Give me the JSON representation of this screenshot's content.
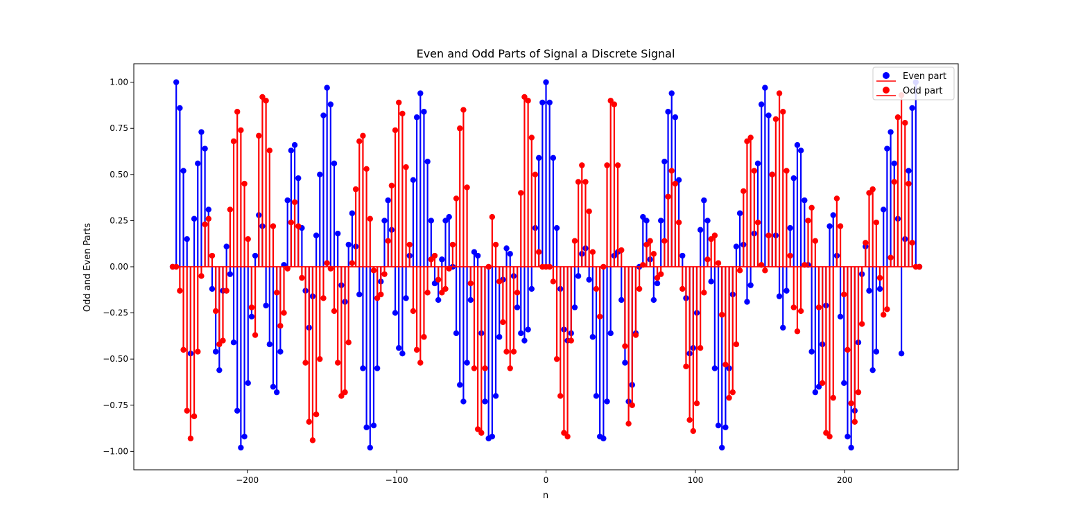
{
  "chart_data": {
    "type": "stem",
    "title": "Even and Odd Parts of Signal a Discrete Signal",
    "xlabel": "n",
    "ylabel": "Odd and Even Parts",
    "xlim": [
      -276,
      276
    ],
    "ylim": [
      -1.1,
      1.1
    ],
    "x_ticks": [
      -200,
      -100,
      0,
      100,
      200
    ],
    "x_tick_labels": [
      "−200",
      "−100",
      "0",
      "100",
      "200"
    ],
    "y_ticks": [
      -1.0,
      -0.75,
      -0.5,
      -0.25,
      0.0,
      0.25,
      0.5,
      0.75,
      1.0
    ],
    "y_tick_labels": [
      "−1.00",
      "−0.75",
      "−0.50",
      "−0.25",
      "0.00",
      "0.25",
      "0.50",
      "0.75",
      "1.00"
    ],
    "x_range": [
      -250,
      250
    ],
    "legend": {
      "position": "top-right",
      "entries": [
        {
          "label": "Even part",
          "color": "#0000ff"
        },
        {
          "label": "Odd part",
          "color": "#ff0000"
        }
      ]
    },
    "series": [
      {
        "name": "Even part",
        "color": "#0000ff",
        "values": [
          0.0,
          1.0,
          0.86,
          0.52,
          0.15,
          -0.47,
          0.26,
          0.56,
          0.73,
          0.64,
          0.31,
          -0.12,
          -0.46,
          -0.56,
          -0.13,
          0.11,
          -0.04,
          -0.41,
          -0.78,
          -0.98,
          -0.92,
          -0.63,
          -0.27,
          0.06,
          0.28,
          0.22,
          -0.21,
          -0.42,
          -0.65,
          -0.68,
          -0.46,
          0.01,
          0.36,
          0.63,
          0.66,
          0.48,
          0.21,
          -0.13,
          -0.33,
          -0.16,
          0.17,
          0.5,
          0.82,
          0.97,
          0.88,
          0.56,
          0.18,
          -0.1,
          -0.19,
          0.12,
          0.29,
          0.11,
          -0.15,
          -0.55,
          -0.87,
          -0.98,
          -0.86,
          -0.55,
          -0.08,
          0.25,
          0.36,
          0.2,
          -0.25,
          -0.44,
          -0.47,
          -0.17,
          0.06,
          0.47,
          0.81,
          0.94,
          0.84,
          0.57,
          0.25,
          -0.09,
          -0.18,
          0.04,
          0.25,
          0.27,
          0.0,
          -0.36,
          -0.64,
          -0.73,
          -0.52,
          -0.18,
          0.08,
          0.06,
          -0.36,
          -0.73,
          -0.93,
          -0.92,
          -0.7,
          -0.38,
          -0.07,
          0.1,
          0.07,
          -0.05,
          -0.22,
          -0.36,
          -0.4,
          -0.34,
          -0.12,
          0.21,
          0.59,
          0.89,
          1.0,
          0.89,
          0.59,
          0.21,
          -0.12,
          -0.34,
          -0.4,
          -0.36,
          -0.22,
          -0.05,
          0.07,
          0.1,
          -0.07,
          -0.38,
          -0.7,
          -0.92,
          -0.93,
          -0.73,
          -0.36,
          0.06,
          0.08,
          -0.18,
          -0.52,
          -0.73,
          -0.64,
          -0.36,
          0.0,
          0.27,
          0.25,
          0.04,
          -0.18,
          -0.09,
          0.25,
          0.57,
          0.84,
          0.94,
          0.81,
          0.47,
          0.06,
          -0.17,
          -0.47,
          -0.44,
          -0.25,
          0.2,
          0.36,
          0.25,
          -0.08,
          -0.55,
          -0.86,
          -0.98,
          -0.87,
          -0.55,
          -0.15,
          0.11,
          0.29,
          0.12,
          -0.19,
          -0.1,
          0.18,
          0.56,
          0.88,
          0.97,
          0.82,
          0.5,
          0.17,
          -0.16,
          -0.33,
          -0.13,
          0.21,
          0.48,
          0.66,
          0.63,
          0.36,
          0.01,
          -0.46,
          -0.68,
          -0.65,
          -0.42,
          -0.21,
          0.22,
          0.28,
          0.06,
          -0.27,
          -0.63,
          -0.92,
          -0.98,
          -0.78,
          -0.41,
          -0.04,
          0.11,
          -0.13,
          -0.56,
          -0.46,
          -0.12,
          0.31,
          0.64,
          0.73,
          0.56,
          0.26,
          -0.47,
          0.15,
          0.52,
          0.86,
          1.0,
          0.0
        ]
      },
      {
        "name": "Odd part",
        "color": "#ff0000",
        "values": [
          0.0,
          0.0,
          -0.13,
          -0.45,
          -0.78,
          -0.93,
          -0.81,
          -0.46,
          -0.05,
          0.23,
          0.26,
          0.06,
          -0.24,
          -0.42,
          -0.4,
          -0.13,
          0.31,
          0.68,
          0.84,
          0.74,
          0.45,
          0.15,
          -0.22,
          -0.37,
          0.71,
          0.92,
          0.9,
          0.63,
          0.22,
          -0.14,
          -0.32,
          -0.25,
          -0.01,
          0.24,
          0.35,
          0.22,
          -0.06,
          -0.52,
          -0.84,
          -0.94,
          -0.8,
          -0.5,
          -0.17,
          0.02,
          -0.01,
          -0.24,
          -0.52,
          -0.7,
          -0.68,
          -0.41,
          0.02,
          0.42,
          0.68,
          0.71,
          0.53,
          0.26,
          -0.02,
          -0.17,
          -0.15,
          -0.04,
          0.14,
          0.44,
          0.74,
          0.89,
          0.83,
          0.54,
          0.12,
          -0.24,
          -0.45,
          -0.52,
          -0.38,
          -0.14,
          0.04,
          0.06,
          -0.07,
          -0.14,
          -0.12,
          -0.01,
          0.12,
          0.37,
          0.75,
          0.85,
          0.43,
          -0.09,
          -0.55,
          -0.88,
          -0.9,
          -0.55,
          0.0,
          0.27,
          0.12,
          -0.08,
          -0.3,
          -0.46,
          -0.55,
          -0.46,
          -0.14,
          0.4,
          0.92,
          0.9,
          0.7,
          0.5,
          0.08,
          0.0,
          0.0,
          0.0,
          -0.08,
          -0.5,
          -0.7,
          -0.9,
          -0.92,
          -0.4,
          0.14,
          0.46,
          0.55,
          0.46,
          0.3,
          0.08,
          -0.12,
          -0.27,
          0.0,
          0.55,
          0.9,
          0.88,
          0.55,
          0.09,
          -0.43,
          -0.85,
          -0.75,
          -0.37,
          -0.12,
          0.01,
          0.12,
          0.14,
          0.07,
          -0.06,
          -0.04,
          0.14,
          0.38,
          0.52,
          0.45,
          0.24,
          -0.12,
          -0.54,
          -0.83,
          -0.89,
          -0.74,
          -0.44,
          -0.14,
          0.04,
          0.15,
          0.17,
          0.02,
          -0.26,
          -0.53,
          -0.71,
          -0.68,
          -0.42,
          -0.02,
          0.41,
          0.68,
          0.7,
          0.52,
          0.24,
          0.01,
          -0.02,
          0.17,
          0.5,
          0.8,
          0.94,
          0.84,
          0.52,
          0.06,
          -0.22,
          -0.35,
          -0.24,
          0.01,
          0.25,
          0.32,
          0.14,
          -0.22,
          -0.63,
          -0.9,
          -0.92,
          -0.71,
          0.37,
          0.22,
          -0.15,
          -0.45,
          -0.74,
          -0.84,
          -0.68,
          -0.31,
          0.13,
          0.4,
          0.42,
          0.24,
          -0.06,
          -0.26,
          -0.23,
          0.05,
          0.46,
          0.81,
          0.93,
          0.78,
          0.45,
          0.13,
          0.0,
          0.0
        ]
      }
    ]
  }
}
